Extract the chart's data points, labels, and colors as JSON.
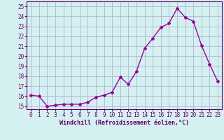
{
  "x": [
    0,
    1,
    2,
    3,
    4,
    5,
    6,
    7,
    8,
    9,
    10,
    11,
    12,
    13,
    14,
    15,
    16,
    17,
    18,
    19,
    20,
    21,
    22,
    23
  ],
  "y": [
    16.1,
    16.0,
    15.0,
    15.1,
    15.2,
    15.2,
    15.2,
    15.4,
    15.9,
    16.1,
    16.4,
    17.9,
    17.2,
    18.5,
    20.8,
    21.8,
    22.9,
    23.3,
    24.8,
    23.9,
    23.5,
    21.1,
    19.2,
    17.5
  ],
  "line_color": "#990099",
  "marker": "D",
  "marker_size": 2.0,
  "xlabel": "Windchill (Refroidissement éolien,°C)",
  "xlabel_fontsize": 6.0,
  "ylabel_ticks": [
    15,
    16,
    17,
    18,
    19,
    20,
    21,
    22,
    23,
    24,
    25
  ],
  "xlim": [
    -0.5,
    23.5
  ],
  "ylim": [
    14.7,
    25.5
  ],
  "background_color": "#d4f0f0",
  "grid_color": "#aaaacc",
  "tick_fontsize": 5.5,
  "linewidth": 1.0
}
